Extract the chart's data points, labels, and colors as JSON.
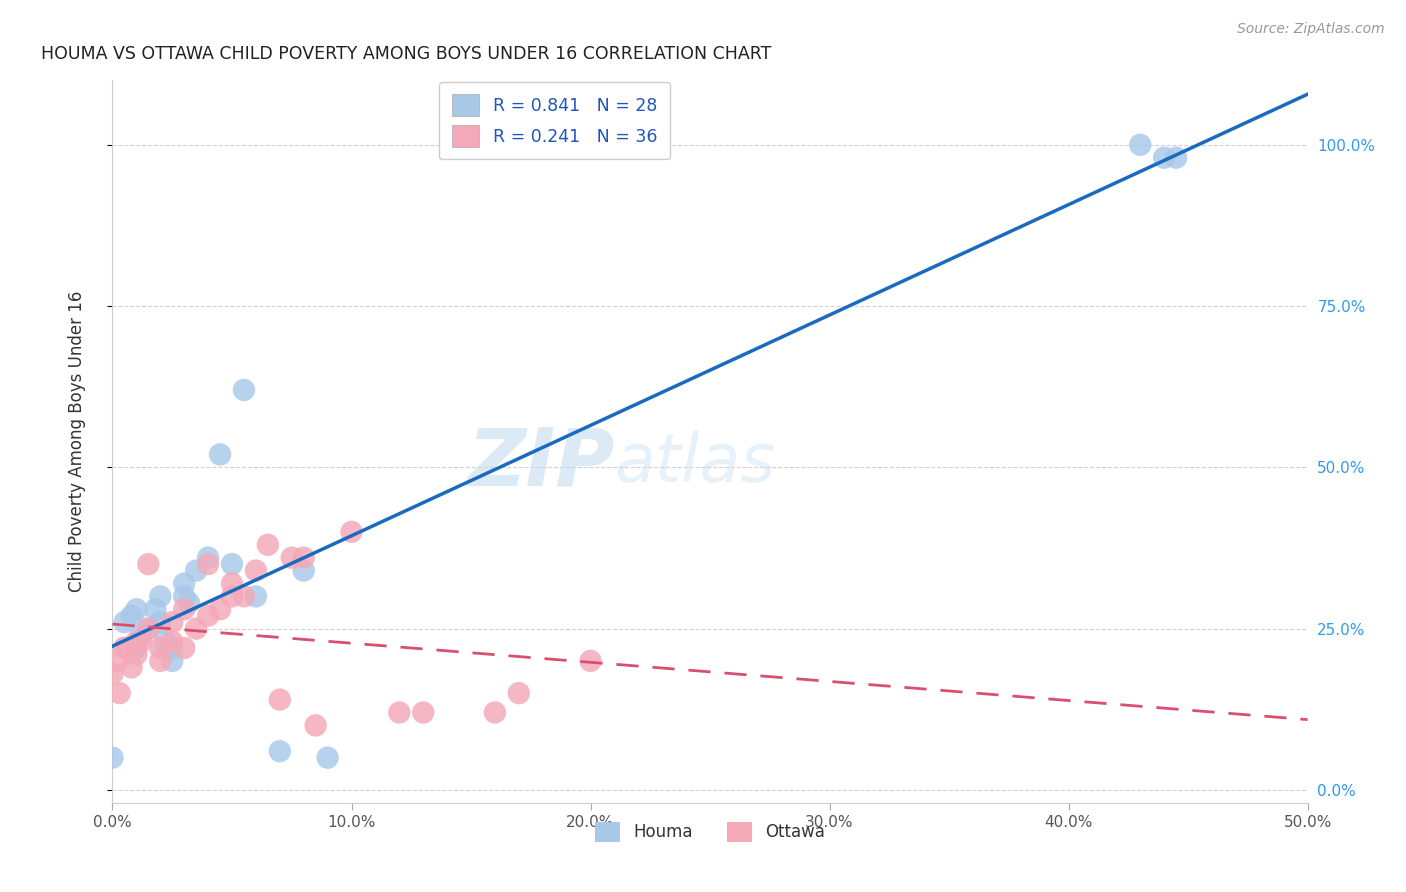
{
  "title": "HOUMA VS OTTAWA CHILD POVERTY AMONG BOYS UNDER 16 CORRELATION CHART",
  "source": "Source: ZipAtlas.com",
  "ylabel": "Child Poverty Among Boys Under 16",
  "xlim": [
    0,
    50
  ],
  "ylim": [
    -2,
    110
  ],
  "xticks": [
    0,
    10,
    20,
    30,
    40,
    50
  ],
  "xticklabels": [
    "0.0%",
    "10.0%",
    "20.0%",
    "30.0%",
    "40.0%",
    "50.0%"
  ],
  "yticks": [
    0,
    25,
    50,
    75,
    100
  ],
  "yticklabels": [
    "0.0%",
    "25.0%",
    "50.0%",
    "75.0%",
    "100.0%"
  ],
  "legend_labels": [
    "R = 0.841   N = 28",
    "R = 0.241   N = 36"
  ],
  "legend_city": [
    "Houma",
    "Ottawa"
  ],
  "houma_color": "#a8c8e8",
  "ottawa_color": "#f4a8b8",
  "houma_line_color": "#1a6abf",
  "ottawa_line_color": "#d94f6e",
  "watermark_zip": "ZIP",
  "watermark_atlas": "atlas",
  "background_color": "#ffffff",
  "grid_color": "#cccccc",
  "houma_x": [
    0.0,
    0.5,
    0.8,
    1.0,
    1.0,
    1.2,
    1.5,
    1.8,
    2.0,
    2.0,
    2.2,
    2.5,
    2.5,
    3.0,
    3.0,
    3.2,
    3.5,
    4.0,
    4.5,
    5.0,
    5.5,
    6.0,
    7.0,
    8.0,
    9.0,
    43.0,
    44.0,
    44.5
  ],
  "houma_y": [
    5.0,
    26.0,
    27.0,
    22.0,
    28.0,
    24.0,
    25.0,
    28.0,
    30.0,
    26.0,
    23.0,
    20.0,
    22.0,
    32.0,
    30.0,
    29.0,
    34.0,
    36.0,
    52.0,
    35.0,
    62.0,
    30.0,
    6.0,
    34.0,
    5.0,
    100.0,
    98.0,
    98.0
  ],
  "ottawa_x": [
    0.0,
    0.2,
    0.3,
    0.5,
    0.5,
    0.8,
    1.0,
    1.0,
    1.2,
    1.5,
    1.5,
    2.0,
    2.0,
    2.5,
    2.5,
    3.0,
    3.0,
    3.5,
    4.0,
    4.0,
    4.5,
    5.0,
    5.0,
    5.5,
    6.0,
    6.5,
    7.0,
    7.5,
    8.0,
    8.5,
    10.0,
    12.0,
    13.0,
    16.0,
    17.0,
    20.0
  ],
  "ottawa_y": [
    18.0,
    20.0,
    15.0,
    22.0,
    22.0,
    19.0,
    21.0,
    23.0,
    23.0,
    25.0,
    35.0,
    20.0,
    22.0,
    23.0,
    26.0,
    28.0,
    22.0,
    25.0,
    27.0,
    35.0,
    28.0,
    30.0,
    32.0,
    30.0,
    34.0,
    38.0,
    14.0,
    36.0,
    36.0,
    10.0,
    40.0,
    12.0,
    12.0,
    12.0,
    15.0,
    20.0
  ]
}
